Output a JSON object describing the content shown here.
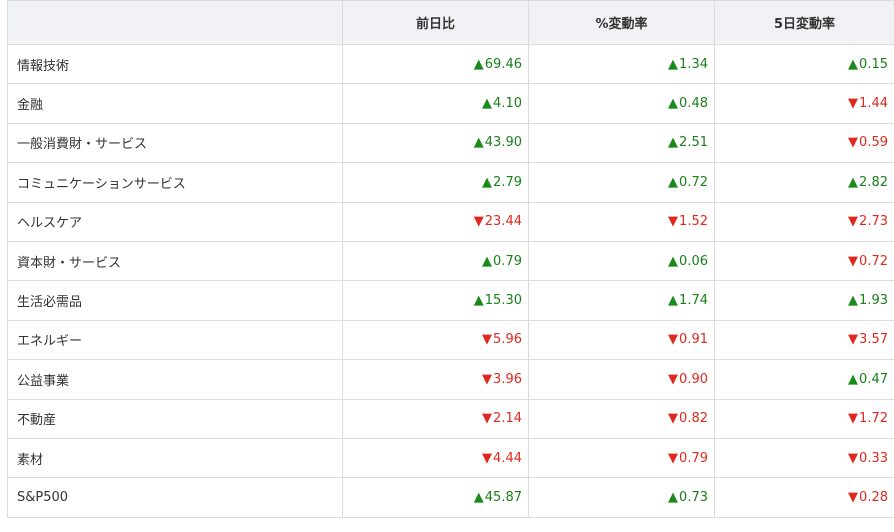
{
  "table": {
    "headers": [
      "",
      "前日比",
      "%変動率",
      "5日変動率"
    ],
    "rows": [
      {
        "name": "情報技術",
        "cells": [
          {
            "dir": "up",
            "value": "69.46"
          },
          {
            "dir": "up",
            "value": "1.34"
          },
          {
            "dir": "up",
            "value": "0.15"
          }
        ]
      },
      {
        "name": "金融",
        "cells": [
          {
            "dir": "up",
            "value": "4.10"
          },
          {
            "dir": "up",
            "value": "0.48"
          },
          {
            "dir": "down",
            "value": "1.44"
          }
        ]
      },
      {
        "name": "一般消費財・サービス",
        "cells": [
          {
            "dir": "up",
            "value": "43.90"
          },
          {
            "dir": "up",
            "value": "2.51"
          },
          {
            "dir": "down",
            "value": "0.59"
          }
        ]
      },
      {
        "name": "コミュニケーションサービス",
        "cells": [
          {
            "dir": "up",
            "value": "2.79"
          },
          {
            "dir": "up",
            "value": "0.72"
          },
          {
            "dir": "up",
            "value": "2.82"
          }
        ]
      },
      {
        "name": "ヘルスケア",
        "cells": [
          {
            "dir": "down",
            "value": "23.44"
          },
          {
            "dir": "down",
            "value": "1.52"
          },
          {
            "dir": "down",
            "value": "2.73"
          }
        ]
      },
      {
        "name": "資本財・サービス",
        "cells": [
          {
            "dir": "up",
            "value": "0.79"
          },
          {
            "dir": "up",
            "value": "0.06"
          },
          {
            "dir": "down",
            "value": "0.72"
          }
        ]
      },
      {
        "name": "生活必需品",
        "cells": [
          {
            "dir": "up",
            "value": "15.30"
          },
          {
            "dir": "up",
            "value": "1.74"
          },
          {
            "dir": "up",
            "value": "1.93"
          }
        ]
      },
      {
        "name": "エネルギー",
        "cells": [
          {
            "dir": "down",
            "value": "5.96"
          },
          {
            "dir": "down",
            "value": "0.91"
          },
          {
            "dir": "down",
            "value": "3.57"
          }
        ]
      },
      {
        "name": "公益事業",
        "cells": [
          {
            "dir": "down",
            "value": "3.96"
          },
          {
            "dir": "down",
            "value": "0.90"
          },
          {
            "dir": "up",
            "value": "0.47"
          }
        ]
      },
      {
        "name": "不動産",
        "cells": [
          {
            "dir": "down",
            "value": "2.14"
          },
          {
            "dir": "down",
            "value": "0.82"
          },
          {
            "dir": "down",
            "value": "1.72"
          }
        ]
      },
      {
        "name": "素材",
        "cells": [
          {
            "dir": "down",
            "value": "4.44"
          },
          {
            "dir": "down",
            "value": "0.79"
          },
          {
            "dir": "down",
            "value": "0.33"
          }
        ]
      },
      {
        "name": "S&P500",
        "cells": [
          {
            "dir": "up",
            "value": "45.87"
          },
          {
            "dir": "up",
            "value": "0.73"
          },
          {
            "dir": "down",
            "value": "0.28"
          }
        ]
      }
    ]
  },
  "symbols": {
    "up": "▲",
    "down": "▼"
  },
  "colors": {
    "up": "#1a7f1a",
    "down": "#e0281e",
    "header_bg": "#f0f2f5",
    "border": "#dcdcdc"
  },
  "icons": {
    "up": "triangle-up-icon",
    "down": "triangle-down-icon"
  }
}
